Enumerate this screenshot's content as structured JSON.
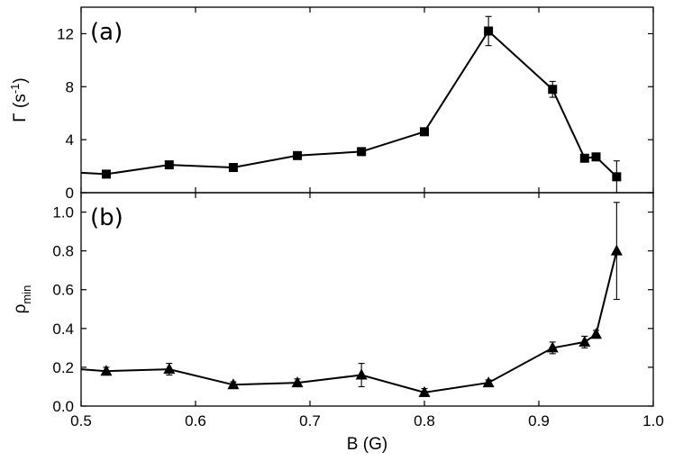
{
  "chart_data": [
    {
      "type": "line",
      "panel_label": "(a)",
      "ylabel": "Γ (s",
      "ylabel_exponent": "-1",
      "ylabel_close": ")",
      "xlabel": "",
      "xlim": [
        0.5,
        1.0
      ],
      "ylim": [
        0,
        14
      ],
      "yticks": [
        0,
        4,
        8,
        12
      ],
      "xticks": [
        0.5,
        0.6,
        0.7,
        0.8,
        0.9,
        1.0
      ],
      "show_xtick_labels": false,
      "marker": "square",
      "grid": false,
      "series": [
        {
          "x": [
            0.5,
            0.522,
            0.577,
            0.633,
            0.689,
            0.745,
            0.8,
            0.856,
            0.912,
            0.94,
            0.95,
            0.968
          ],
          "y": [
            1.5,
            1.4,
            2.1,
            1.9,
            2.8,
            3.1,
            4.6,
            12.2,
            7.8,
            2.6,
            2.7,
            1.2
          ],
          "err": [
            null,
            0.1,
            0.15,
            0.1,
            0.1,
            0.15,
            0.2,
            1.1,
            0.6,
            0.2,
            0.2,
            1.2
          ],
          "marker_start": 1
        }
      ]
    },
    {
      "type": "line",
      "panel_label": "(b)",
      "ylabel": "ρ",
      "ylabel_sub": "min",
      "xlabel": "B (G)",
      "xlim": [
        0.5,
        1.0
      ],
      "ylim": [
        0,
        1.1
      ],
      "yticks": [
        0.0,
        0.2,
        0.4,
        0.6,
        0.8,
        1.0
      ],
      "ytick_labels": [
        "0.0",
        "0.2",
        "0.4",
        "0.6",
        "0.8",
        "1.0"
      ],
      "xticks": [
        0.5,
        0.6,
        0.7,
        0.8,
        0.9,
        1.0
      ],
      "xtick_labels": [
        "0.5",
        "0.6",
        "0.7",
        "0.8",
        "0.9",
        "1.0"
      ],
      "show_xtick_labels": true,
      "marker": "triangle",
      "grid": false,
      "series": [
        {
          "x": [
            0.5,
            0.522,
            0.577,
            0.633,
            0.689,
            0.745,
            0.8,
            0.856,
            0.912,
            0.94,
            0.95,
            0.968
          ],
          "y": [
            0.19,
            0.18,
            0.19,
            0.11,
            0.12,
            0.16,
            0.07,
            0.12,
            0.3,
            0.33,
            0.37,
            0.8
          ],
          "err": [
            null,
            0.02,
            0.03,
            0.015,
            0.02,
            0.06,
            0.02,
            0.015,
            0.03,
            0.03,
            0.02,
            0.25
          ],
          "marker_start": 1
        }
      ]
    }
  ]
}
